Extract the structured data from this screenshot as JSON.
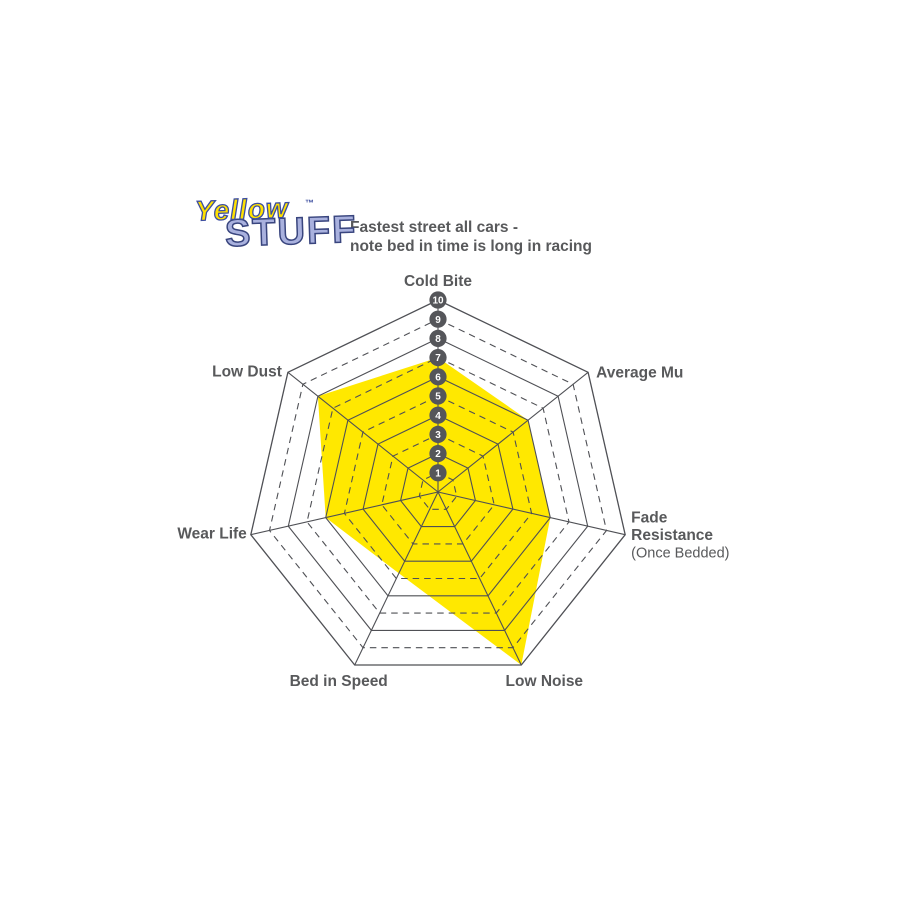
{
  "logo": {
    "primary": "Yellow",
    "trademark": "TM",
    "secondary": "STUFF"
  },
  "subtitle": {
    "line1": "Fastest street all cars -",
    "line2": "note bed in time is long in racing"
  },
  "colors": {
    "background": "#ffffff",
    "series_fill": "#ffe800",
    "grid_line": "#4f5055",
    "label_text": "#58595b",
    "node_fill": "#55565a",
    "node_text": "#ffffff",
    "logo_primary": "#ffe100",
    "logo_primary_outline": "#3d4ea0",
    "logo_secondary": "#a9b1de",
    "logo_secondary_outline": "#39457e"
  },
  "chart_data": {
    "type": "radar",
    "axes": [
      {
        "label": "Cold Bite"
      },
      {
        "label": "Average Mu"
      },
      {
        "label": "Fade Resistance",
        "sublabel": "(Once Bedded)"
      },
      {
        "label": "Low Noise"
      },
      {
        "label": "Bed in Speed"
      },
      {
        "label": "Wear Life"
      },
      {
        "label": "Low Dust"
      }
    ],
    "series": [
      {
        "name": "Yellowstuff",
        "values": [
          7,
          6,
          6,
          10,
          4.7,
          6,
          8
        ]
      }
    ],
    "scale_min": 0,
    "scale_max": 10,
    "scale_ticks": [
      1,
      2,
      3,
      4,
      5,
      6,
      7,
      8,
      9,
      10
    ],
    "grid": {
      "rings": 10,
      "shape": "heptagon",
      "odd_rings_dashed": true,
      "even_rings_solid": true
    },
    "legend_position": "none"
  }
}
